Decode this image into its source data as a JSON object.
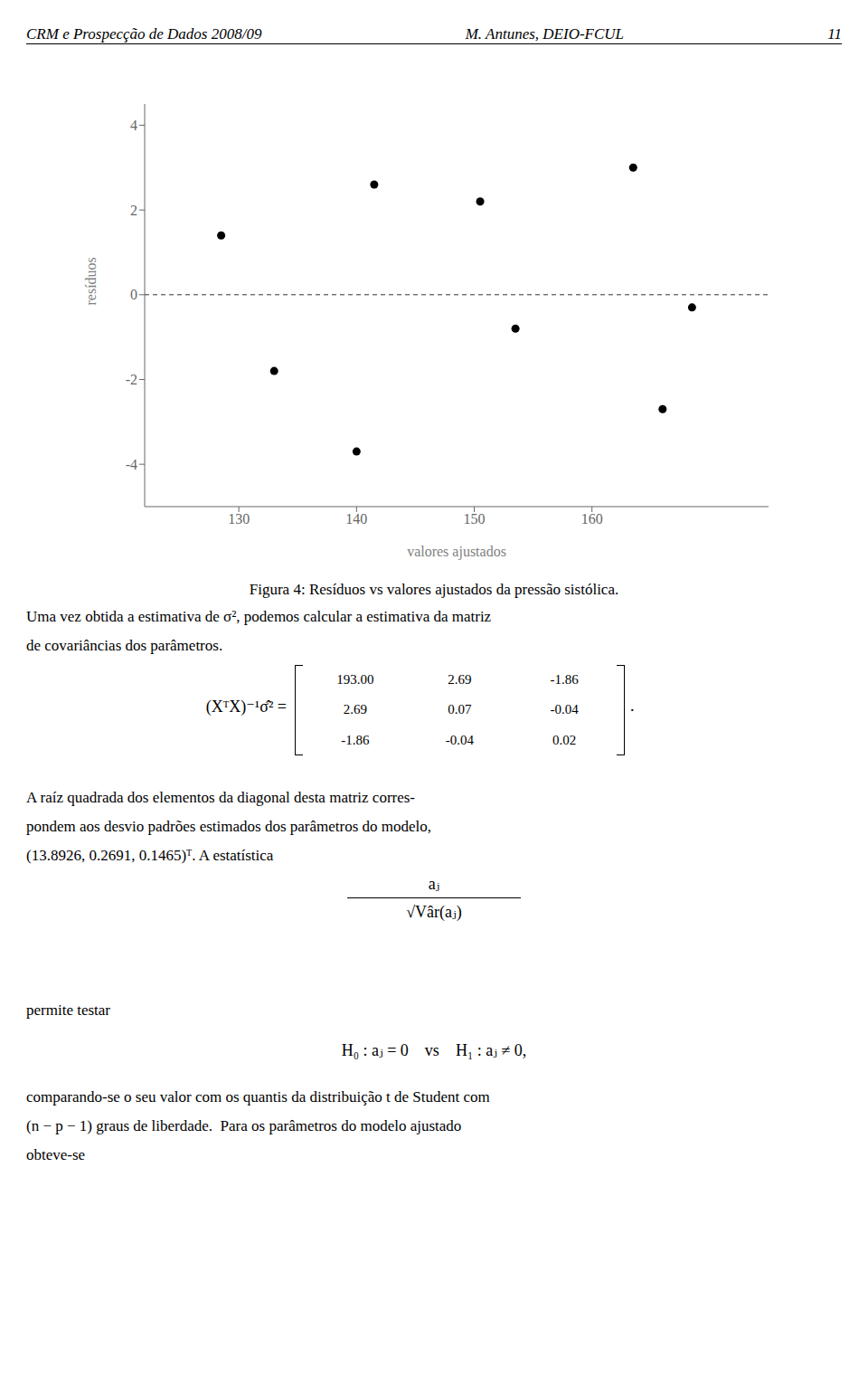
{
  "chart_data": {
    "type": "scatter",
    "x": [
      128.5,
      133.0,
      140.0,
      141.5,
      150.5,
      153.5,
      163.5,
      166.0,
      168.5
    ],
    "values": [
      1.4,
      -1.8,
      -3.7,
      2.6,
      2.2,
      -0.8,
      3.0,
      -2.7,
      -0.3
    ],
    "xlabel": "valores ajustados",
    "ylabel": "resíduos",
    "xlim": [
      122,
      175
    ],
    "ylim": [
      -5,
      4.5
    ],
    "xticks": [
      130,
      140,
      150,
      160
    ],
    "yticks": [
      -4,
      -2,
      0,
      2,
      4
    ],
    "hline": 0,
    "grid": false,
    "annotations": {
      "header": [
        "CRM e Prospecção de Dados 2008/09",
        "M. Antunes, DEIO-FCUL",
        "11"
      ],
      "caption": "Figura 4:  Resíduos vs valores ajustados da pressão sistólica.",
      "paragraph1": [
        "Uma vez obtida a estimativa de σ², podemos calcular a estimativa da matriz",
        "de covariâncias dos parâmetros."
      ],
      "matrix_label": "(XᵀX)⁻¹σ̂² =",
      "matrix": [
        [
          "193.00",
          "2.69",
          "-1.86"
        ],
        [
          "2.69",
          "0.07",
          "-0.04"
        ],
        [
          "-1.86",
          "-0.04",
          "0.02"
        ]
      ],
      "matrix_end": ".",
      "paragraph2": [
        "A raíz quadrada dos elementos da diagonal desta matriz corres-",
        "pondem aos desvio padrões estimados dos parâmetros do modelo,",
        "(13.8926, 0.2691, 0.1465)ᵀ. A estatística"
      ],
      "fraction": [
        "aⱼ",
        "√Vâr(aⱼ)"
      ],
      "paragraph3": [
        "permite testar"
      ],
      "hypothesis": "H₀ : aⱼ = 0    vs    H₁ : aⱼ ≠ 0,",
      "paragraph4": [
        "comparando-se o seu valor com os quantis da distribuição t de Student com",
        "(n − p − 1) graus de liberdade.  Para os parâmetros do modelo ajustado",
        "obteve-se"
      ]
    }
  }
}
